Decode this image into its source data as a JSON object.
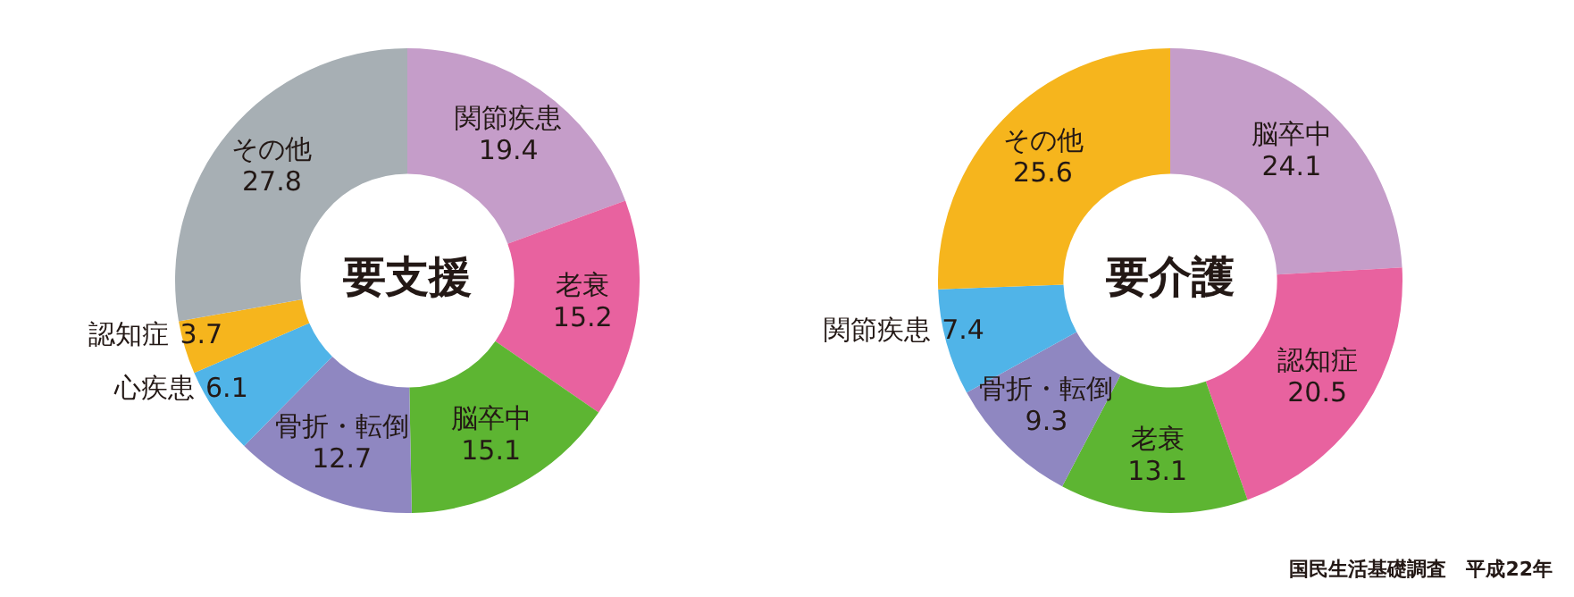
{
  "chart_data": [
    {
      "type": "donut",
      "title": "要支援",
      "categories": [
        "関節疾患",
        "老衰",
        "脳卒中",
        "骨折・転倒",
        "心疾患",
        "認知症",
        "その他"
      ],
      "values": [
        19.4,
        15.2,
        15.1,
        12.7,
        6.1,
        3.7,
        27.8
      ],
      "colors": [
        "#c59dc9",
        "#e8629f",
        "#5db532",
        "#8f87c1",
        "#50b4e8",
        "#f6b51d",
        "#a7afb4"
      ],
      "data_labels": true,
      "legend": false
    },
    {
      "type": "donut",
      "title": "要介護",
      "categories": [
        "脳卒中",
        "認知症",
        "老衰",
        "骨折・転倒",
        "関節疾患",
        "その他"
      ],
      "values": [
        24.1,
        20.5,
        13.1,
        9.3,
        7.4,
        25.6
      ],
      "colors": [
        "#c59dc9",
        "#e8629f",
        "#5db532",
        "#8f87c1",
        "#50b4e8",
        "#f6b51d"
      ],
      "data_labels": true,
      "legend": false,
      "annotations": [
        "国民生活基礎調査　平成22年"
      ]
    }
  ]
}
